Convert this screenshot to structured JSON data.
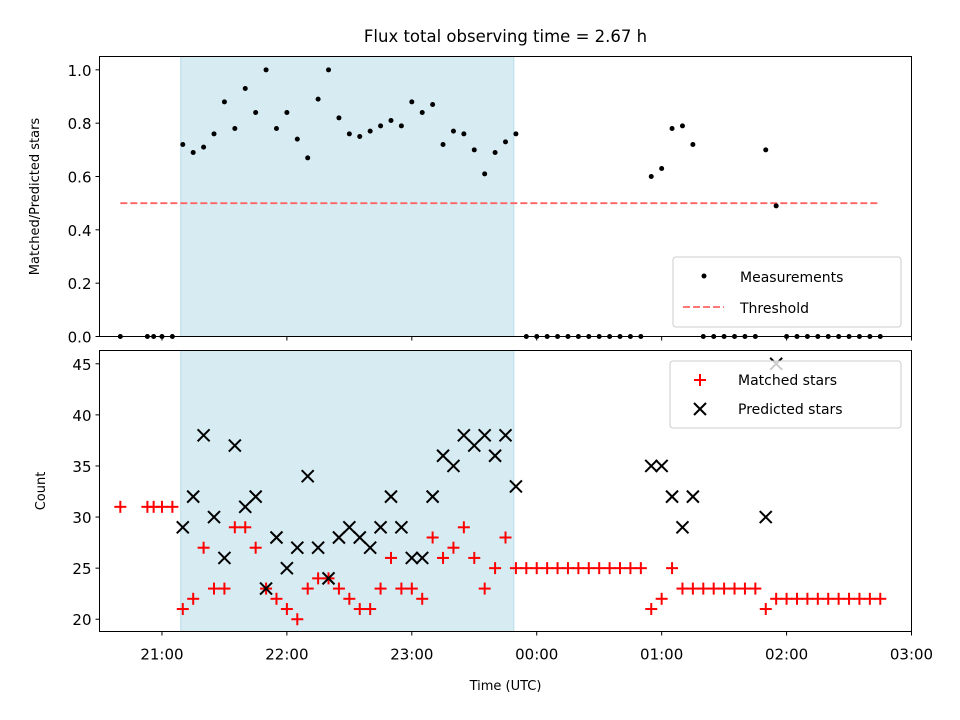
{
  "chart_data": [
    {
      "type": "scatter",
      "title": "Flux total observing time = 2.67 h",
      "xlabel": "",
      "ylabel": "Matched/Predicted stars",
      "xlim": [
        "20:30",
        "03:00"
      ],
      "ylim": [
        0,
        1.05
      ],
      "yticks": [
        "0.0",
        "0.2",
        "0.4",
        "0.6",
        "0.8",
        "1.0"
      ],
      "grid": false,
      "legend_position": "lower-right",
      "shaded_region": {
        "start": "21:09",
        "end": "23:49",
        "color": "#add8e6"
      },
      "threshold": {
        "name": "Threshold",
        "value": 0.5,
        "start": "20:40",
        "end": "02:45",
        "color": "#ff6464"
      },
      "series": [
        {
          "name": "Measurements",
          "color": "#000000",
          "points": [
            [
              "20:40",
              0
            ],
            [
              "20:53",
              0
            ],
            [
              "20:56",
              0
            ],
            [
              "21:00",
              0
            ],
            [
              "21:05",
              0
            ],
            [
              "21:10",
              0.72
            ],
            [
              "21:15",
              0.69
            ],
            [
              "21:20",
              0.71
            ],
            [
              "21:25",
              0.76
            ],
            [
              "21:30",
              0.88
            ],
            [
              "21:35",
              0.78
            ],
            [
              "21:40",
              0.93
            ],
            [
              "21:45",
              0.84
            ],
            [
              "21:50",
              1.0
            ],
            [
              "21:55",
              0.78
            ],
            [
              "22:00",
              0.84
            ],
            [
              "22:05",
              0.74
            ],
            [
              "22:10",
              0.67
            ],
            [
              "22:15",
              0.89
            ],
            [
              "22:20",
              1.0
            ],
            [
              "22:25",
              0.82
            ],
            [
              "22:30",
              0.76
            ],
            [
              "22:35",
              0.75
            ],
            [
              "22:40",
              0.77
            ],
            [
              "22:45",
              0.79
            ],
            [
              "22:50",
              0.81
            ],
            [
              "22:55",
              0.79
            ],
            [
              "23:00",
              0.88
            ],
            [
              "23:05",
              0.84
            ],
            [
              "23:10",
              0.87
            ],
            [
              "23:15",
              0.72
            ],
            [
              "23:20",
              0.77
            ],
            [
              "23:25",
              0.76
            ],
            [
              "23:30",
              0.7
            ],
            [
              "23:35",
              0.61
            ],
            [
              "23:40",
              0.69
            ],
            [
              "23:45",
              0.73
            ],
            [
              "23:50",
              0.76
            ],
            [
              "23:55",
              0
            ],
            [
              "00:00",
              0
            ],
            [
              "00:05",
              0
            ],
            [
              "00:10",
              0
            ],
            [
              "00:15",
              0
            ],
            [
              "00:20",
              0
            ],
            [
              "00:25",
              0
            ],
            [
              "00:30",
              0
            ],
            [
              "00:35",
              0
            ],
            [
              "00:40",
              0
            ],
            [
              "00:45",
              0
            ],
            [
              "00:50",
              0
            ],
            [
              "00:55",
              0.6
            ],
            [
              "01:00",
              0.63
            ],
            [
              "01:05",
              0.78
            ],
            [
              "01:10",
              0.79
            ],
            [
              "01:15",
              0.72
            ],
            [
              "01:20",
              0
            ],
            [
              "01:25",
              0
            ],
            [
              "01:30",
              0
            ],
            [
              "01:35",
              0
            ],
            [
              "01:40",
              0
            ],
            [
              "01:45",
              0
            ],
            [
              "01:50",
              0.7
            ],
            [
              "01:55",
              0.49
            ],
            [
              "02:00",
              0
            ],
            [
              "02:05",
              0
            ],
            [
              "02:10",
              0
            ],
            [
              "02:15",
              0
            ],
            [
              "02:20",
              0
            ],
            [
              "02:25",
              0
            ],
            [
              "02:30",
              0
            ],
            [
              "02:35",
              0
            ],
            [
              "02:40",
              0
            ],
            [
              "02:45",
              0
            ]
          ]
        }
      ]
    },
    {
      "type": "scatter",
      "title": "",
      "xlabel": "Time (UTC)",
      "ylabel": "Count",
      "xlim": [
        "20:30",
        "03:00"
      ],
      "ylim": [
        18.8,
        46.3
      ],
      "yticks": [
        "20",
        "25",
        "30",
        "35",
        "40",
        "45"
      ],
      "xticks": [
        "21:00",
        "22:00",
        "23:00",
        "00:00",
        "01:00",
        "02:00",
        "03:00"
      ],
      "grid": false,
      "legend_position": "upper-right",
      "shaded_region": {
        "start": "21:09",
        "end": "23:49",
        "color": "#add8e6"
      },
      "series": [
        {
          "name": "Matched stars",
          "marker": "plus",
          "color": "#ff0000",
          "points": [
            [
              "20:40",
              31
            ],
            [
              "20:53",
              31
            ],
            [
              "20:56",
              31
            ],
            [
              "21:00",
              31
            ],
            [
              "21:05",
              31
            ],
            [
              "21:10",
              21
            ],
            [
              "21:15",
              22
            ],
            [
              "21:20",
              27
            ],
            [
              "21:25",
              23
            ],
            [
              "21:30",
              23
            ],
            [
              "21:35",
              29
            ],
            [
              "21:40",
              29
            ],
            [
              "21:45",
              27
            ],
            [
              "21:50",
              23
            ],
            [
              "21:55",
              22
            ],
            [
              "22:00",
              21
            ],
            [
              "22:05",
              20
            ],
            [
              "22:10",
              23
            ],
            [
              "22:15",
              24
            ],
            [
              "22:20",
              24
            ],
            [
              "22:25",
              23
            ],
            [
              "22:30",
              22
            ],
            [
              "22:35",
              21
            ],
            [
              "22:40",
              21
            ],
            [
              "22:45",
              23
            ],
            [
              "22:50",
              26
            ],
            [
              "22:55",
              23
            ],
            [
              "23:00",
              23
            ],
            [
              "23:05",
              22
            ],
            [
              "23:10",
              28
            ],
            [
              "23:15",
              26
            ],
            [
              "23:20",
              27
            ],
            [
              "23:25",
              29
            ],
            [
              "23:30",
              26
            ],
            [
              "23:35",
              23
            ],
            [
              "23:40",
              25
            ],
            [
              "23:45",
              28
            ],
            [
              "23:50",
              25
            ],
            [
              "23:55",
              25
            ],
            [
              "00:00",
              25
            ],
            [
              "00:05",
              25
            ],
            [
              "00:10",
              25
            ],
            [
              "00:15",
              25
            ],
            [
              "00:20",
              25
            ],
            [
              "00:25",
              25
            ],
            [
              "00:30",
              25
            ],
            [
              "00:35",
              25
            ],
            [
              "00:40",
              25
            ],
            [
              "00:45",
              25
            ],
            [
              "00:50",
              25
            ],
            [
              "00:55",
              21
            ],
            [
              "01:00",
              22
            ],
            [
              "01:05",
              25
            ],
            [
              "01:10",
              23
            ],
            [
              "01:15",
              23
            ],
            [
              "01:20",
              23
            ],
            [
              "01:25",
              23
            ],
            [
              "01:30",
              23
            ],
            [
              "01:35",
              23
            ],
            [
              "01:40",
              23
            ],
            [
              "01:45",
              23
            ],
            [
              "01:50",
              21
            ],
            [
              "01:55",
              22
            ],
            [
              "02:00",
              22
            ],
            [
              "02:05",
              22
            ],
            [
              "02:10",
              22
            ],
            [
              "02:15",
              22
            ],
            [
              "02:20",
              22
            ],
            [
              "02:25",
              22
            ],
            [
              "02:30",
              22
            ],
            [
              "02:35",
              22
            ],
            [
              "02:40",
              22
            ],
            [
              "02:45",
              22
            ]
          ]
        },
        {
          "name": "Predicted stars",
          "marker": "x",
          "color": "#000000",
          "points": [
            [
              "21:10",
              29
            ],
            [
              "21:15",
              32
            ],
            [
              "21:20",
              38
            ],
            [
              "21:25",
              30
            ],
            [
              "21:30",
              26
            ],
            [
              "21:35",
              37
            ],
            [
              "21:40",
              31
            ],
            [
              "21:45",
              32
            ],
            [
              "21:50",
              23
            ],
            [
              "21:55",
              28
            ],
            [
              "22:00",
              25
            ],
            [
              "22:05",
              27
            ],
            [
              "22:10",
              34
            ],
            [
              "22:15",
              27
            ],
            [
              "22:20",
              24
            ],
            [
              "22:25",
              28
            ],
            [
              "22:30",
              29
            ],
            [
              "22:35",
              28
            ],
            [
              "22:40",
              27
            ],
            [
              "22:45",
              29
            ],
            [
              "22:50",
              32
            ],
            [
              "22:55",
              29
            ],
            [
              "23:00",
              26
            ],
            [
              "23:05",
              26
            ],
            [
              "23:10",
              32
            ],
            [
              "23:15",
              36
            ],
            [
              "23:20",
              35
            ],
            [
              "23:25",
              38
            ],
            [
              "23:30",
              37
            ],
            [
              "23:35",
              38
            ],
            [
              "23:40",
              36
            ],
            [
              "23:45",
              38
            ],
            [
              "23:50",
              33
            ],
            [
              "00:55",
              35
            ],
            [
              "01:00",
              35
            ],
            [
              "01:05",
              32
            ],
            [
              "01:10",
              29
            ],
            [
              "01:15",
              32
            ],
            [
              "01:50",
              30
            ],
            [
              "01:55",
              45
            ]
          ]
        }
      ]
    }
  ]
}
